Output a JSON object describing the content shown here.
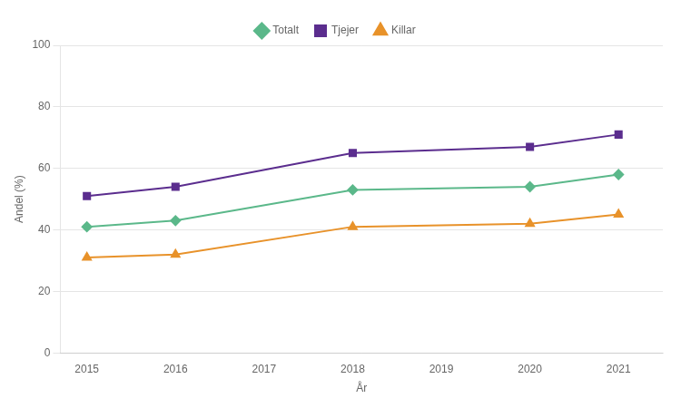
{
  "chart_data": {
    "type": "line",
    "xlabel": "År",
    "ylabel": "Andel (%)",
    "x": [
      2015,
      2016,
      2018,
      2020,
      2021
    ],
    "series": [
      {
        "name": "Totalt",
        "color": "#5BB88A",
        "marker": "diamond",
        "values": [
          41,
          43,
          53,
          54,
          58
        ]
      },
      {
        "name": "Tjejer",
        "color": "#5B2D8E",
        "marker": "square",
        "values": [
          51,
          54,
          65,
          67,
          71
        ]
      },
      {
        "name": "Killar",
        "color": "#E8922A",
        "marker": "triangle",
        "values": [
          31,
          32,
          41,
          42,
          45
        ]
      }
    ],
    "xlim": [
      2014.7,
      2021.5
    ],
    "xticks": [
      2015,
      2016,
      2017,
      2018,
      2019,
      2020,
      2021
    ],
    "ylim": [
      0,
      100
    ],
    "yticks": [
      0,
      20,
      40,
      60,
      80,
      100
    ],
    "grid": "y",
    "legend": "top"
  }
}
